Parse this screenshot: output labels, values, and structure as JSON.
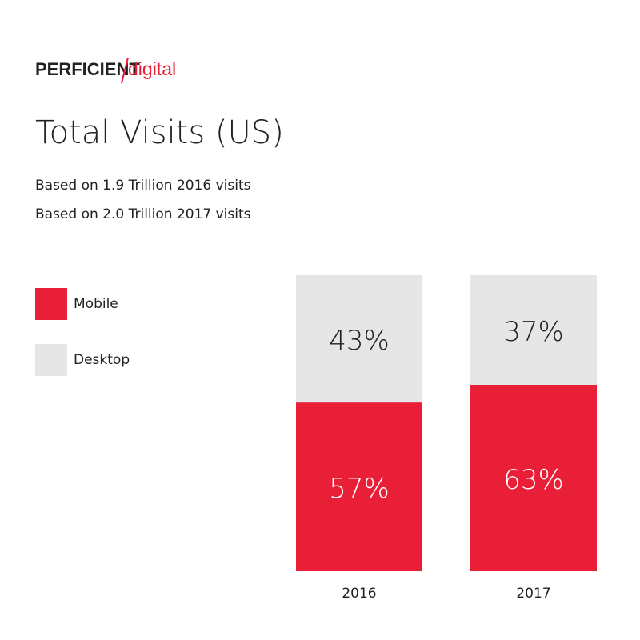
{
  "logo": {
    "name": "PERFICIENT",
    "suffix": "digital"
  },
  "chart_data": {
    "type": "stacked_bar",
    "title": "Total Visits (US)",
    "subtitles": [
      "Based on 1.9 Trillion 2016 visits",
      "Based on 2.0 Trillion 2017 visits"
    ],
    "categories": [
      "2016",
      "2017"
    ],
    "series": [
      {
        "name": "Mobile",
        "color": "#e91e37",
        "values": [
          57,
          63
        ],
        "value_labels": [
          "57%",
          "63%"
        ]
      },
      {
        "name": "Desktop",
        "color": "#e6e6e6",
        "values": [
          43,
          37
        ],
        "value_labels": [
          "43%",
          "37%"
        ]
      }
    ]
  }
}
